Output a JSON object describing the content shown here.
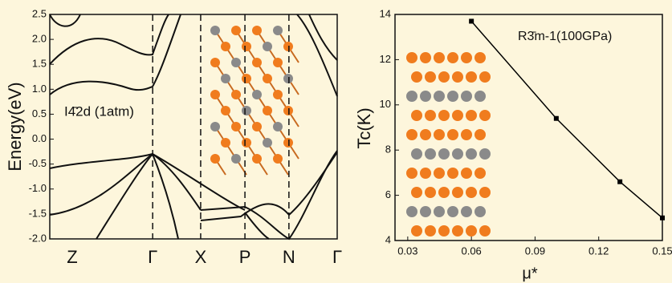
{
  "chart_data": [
    {
      "type": "band",
      "annotation": "I4̄2d (1atm)",
      "ylabel": "Energy(eV)",
      "kpoints": [
        "Z",
        "Γ",
        "X",
        "P",
        "N",
        "Γ"
      ],
      "ylim": [
        -2.0,
        2.5
      ],
      "yticks": [
        {
          "value": 2.5,
          "label": "2.5"
        },
        {
          "value": 2.0,
          "label": "2.0"
        },
        {
          "value": 1.5,
          "label": "1.5"
        },
        {
          "value": 1.0,
          "label": "1.0"
        },
        {
          "value": 0.5,
          "label": "0.5"
        },
        {
          "value": 0.0,
          "label": "0.0"
        },
        {
          "value": -0.5,
          "label": "-0.5"
        },
        {
          "value": -1.0,
          "label": "-1.0"
        },
        {
          "value": -1.5,
          "label": "-1.5"
        },
        {
          "value": -2.0,
          "label": "-2.0"
        }
      ]
    },
    {
      "type": "line",
      "annotation": "R3̄m-1(100GPa)",
      "xlabel": "μ*",
      "ylabel": "Tc(K)",
      "x": [
        0.06,
        0.1,
        0.13,
        0.15
      ],
      "values": [
        13.7,
        9.4,
        6.6,
        5.0
      ],
      "color": "#000000",
      "xlim": [
        0.024,
        0.15
      ],
      "xticks": [
        {
          "value": 0.03,
          "label": "0.03"
        },
        {
          "value": 0.06,
          "label": "0.06"
        },
        {
          "value": 0.09,
          "label": "0.09"
        },
        {
          "value": 0.12,
          "label": "0.12"
        },
        {
          "value": 0.15,
          "label": "0.15"
        }
      ],
      "ylim": [
        4,
        14
      ],
      "yticks": [
        4,
        6,
        8,
        10,
        12,
        14
      ]
    }
  ]
}
